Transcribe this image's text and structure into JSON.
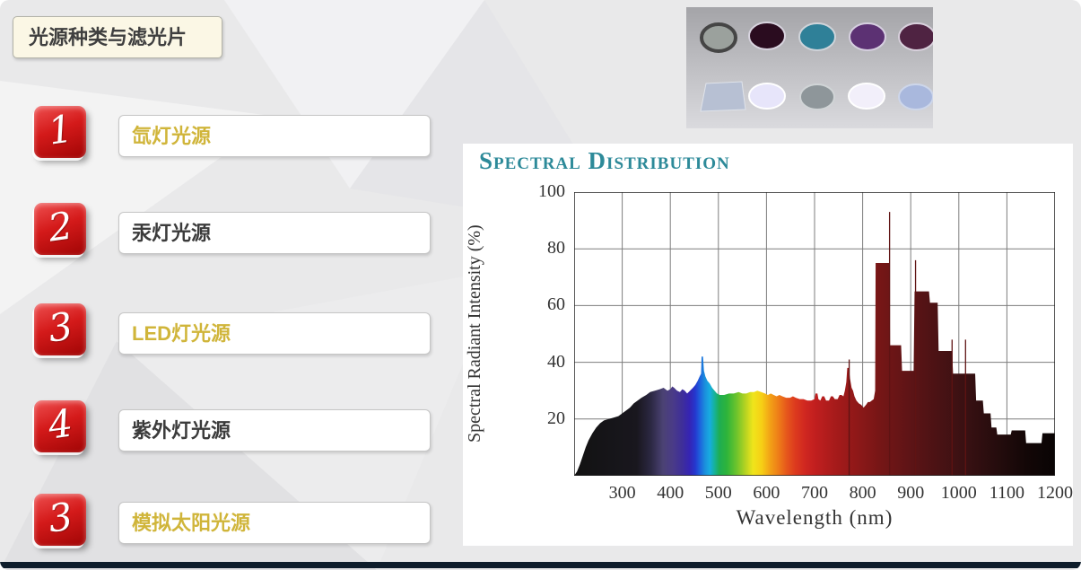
{
  "slide": {
    "title": "光源种类与滤光片",
    "items": [
      {
        "number": "1",
        "label": "氙灯光源",
        "highlight": true
      },
      {
        "number": "2",
        "label": "汞灯光源",
        "highlight": false
      },
      {
        "number": "3",
        "label": "LED灯光源",
        "highlight": true
      },
      {
        "number": "4",
        "label": "紫外灯光源",
        "highlight": false
      },
      {
        "number": "3",
        "label": "模拟太阳光源",
        "highlight": true
      }
    ],
    "colors": {
      "badge_red": "#c8110f",
      "gold_text": "#d0b53a",
      "dark_text": "#3b3b3b",
      "title_teal": "#2d8a99",
      "bottom_bar": "#0e1d2b"
    }
  },
  "filters_photo": {
    "description": "photo of optical filters",
    "top_row_colors": [
      "#9ba19d",
      "#2a0c1f",
      "#2f8098",
      "#5c3173",
      "#4f2342"
    ],
    "bottom_row_colors": [
      "#b7c0d3",
      "#e7e5fa",
      "#8e969a",
      "#f2effa",
      "#a9b8dd"
    ]
  },
  "chart": {
    "title": "Spectral Distribution",
    "ylabel": "Spectral Radiant Intensity (%)",
    "xlabel": "Wavelength (nm)"
  },
  "chart_data": {
    "type": "area",
    "title": "Spectral Distribution",
    "xlabel": "Wavelength (nm)",
    "ylabel": "Spectral Radiant Intensity (%)",
    "xlim": [
      200,
      1200
    ],
    "ylim": [
      0,
      100
    ],
    "x_ticks": [
      300,
      400,
      500,
      600,
      700,
      800,
      900,
      1000,
      1100,
      1200
    ],
    "y_ticks": [
      20,
      40,
      60,
      80,
      100
    ],
    "grid": true,
    "points": [
      [
        200,
        0
      ],
      [
        206,
        1.5
      ],
      [
        212,
        4
      ],
      [
        218,
        7
      ],
      [
        224,
        10
      ],
      [
        230,
        12.5
      ],
      [
        238,
        15
      ],
      [
        246,
        17
      ],
      [
        254,
        18.5
      ],
      [
        262,
        19.5
      ],
      [
        272,
        20
      ],
      [
        282,
        20.5
      ],
      [
        292,
        21
      ],
      [
        300,
        22
      ],
      [
        308,
        23
      ],
      [
        316,
        24
      ],
      [
        324,
        25.5
      ],
      [
        332,
        26.5
      ],
      [
        340,
        27.5
      ],
      [
        350,
        28.5
      ],
      [
        358,
        29.5
      ],
      [
        368,
        30
      ],
      [
        378,
        30.5
      ],
      [
        386,
        31
      ],
      [
        394,
        30
      ],
      [
        400,
        30.5
      ],
      [
        404,
        31.5
      ],
      [
        408,
        31
      ],
      [
        414,
        30
      ],
      [
        420,
        29.5
      ],
      [
        425,
        30.5
      ],
      [
        430,
        30
      ],
      [
        435,
        29
      ],
      [
        441,
        30
      ],
      [
        447,
        31
      ],
      [
        452,
        32
      ],
      [
        457,
        33.5
      ],
      [
        461,
        35
      ],
      [
        464,
        36
      ],
      [
        465,
        42
      ],
      [
        468,
        42
      ],
      [
        470,
        37
      ],
      [
        473,
        35
      ],
      [
        477,
        33.5
      ],
      [
        482,
        32.5
      ],
      [
        487,
        31
      ],
      [
        492,
        30
      ],
      [
        497,
        29
      ],
      [
        503,
        28.5
      ],
      [
        512,
        28.5
      ],
      [
        522,
        29
      ],
      [
        532,
        29
      ],
      [
        542,
        29.5
      ],
      [
        550,
        29
      ],
      [
        558,
        29
      ],
      [
        566,
        29.5
      ],
      [
        574,
        29.5
      ],
      [
        581,
        30
      ],
      [
        589,
        29.5
      ],
      [
        597,
        29
      ],
      [
        603,
        28.5
      ],
      [
        609,
        29
      ],
      [
        615,
        28.5
      ],
      [
        621,
        28
      ],
      [
        627,
        28.5
      ],
      [
        633,
        28
      ],
      [
        641,
        27.5
      ],
      [
        649,
        27.5
      ],
      [
        655,
        28
      ],
      [
        661,
        27.5
      ],
      [
        669,
        27
      ],
      [
        677,
        27
      ],
      [
        685,
        26.5
      ],
      [
        693,
        26.5
      ],
      [
        700,
        27
      ],
      [
        702,
        29
      ],
      [
        706,
        29
      ],
      [
        708,
        27
      ],
      [
        712,
        26.5
      ],
      [
        716,
        28
      ],
      [
        720,
        28
      ],
      [
        724,
        26.5
      ],
      [
        730,
        26.5
      ],
      [
        734,
        28
      ],
      [
        738,
        28
      ],
      [
        742,
        27
      ],
      [
        748,
        27
      ],
      [
        752,
        28.5
      ],
      [
        756,
        28.5
      ],
      [
        760,
        28
      ],
      [
        763,
        30
      ],
      [
        766,
        33
      ],
      [
        768,
        38
      ],
      [
        771,
        38
      ],
      [
        774,
        34
      ],
      [
        777,
        31
      ],
      [
        780,
        30
      ],
      [
        783,
        28
      ],
      [
        787,
        26.5
      ],
      [
        792,
        25.5
      ],
      [
        797,
        25
      ],
      [
        802,
        24
      ],
      [
        807,
        25
      ],
      [
        811,
        26
      ],
      [
        815,
        26
      ],
      [
        819,
        26.5
      ],
      [
        823,
        27
      ],
      [
        826,
        30
      ],
      [
        827,
        75
      ],
      [
        856,
        75
      ],
      [
        857,
        46
      ],
      [
        880,
        46
      ],
      [
        882,
        37
      ],
      [
        906,
        37
      ],
      [
        908,
        65
      ],
      [
        938,
        65
      ],
      [
        940,
        61
      ],
      [
        956,
        61
      ],
      [
        958,
        44
      ],
      [
        986,
        44
      ],
      [
        988,
        36
      ],
      [
        1034,
        36
      ],
      [
        1036,
        26.5
      ],
      [
        1050,
        26.5
      ],
      [
        1052,
        22
      ],
      [
        1066,
        22
      ],
      [
        1068,
        17
      ],
      [
        1078,
        17
      ],
      [
        1080,
        14.5
      ],
      [
        1108,
        14.5
      ],
      [
        1110,
        16
      ],
      [
        1138,
        16
      ],
      [
        1140,
        11.5
      ],
      [
        1172,
        11.5
      ],
      [
        1174,
        15
      ],
      [
        1200,
        15
      ]
    ],
    "thin_spikes": [
      [
        772,
        41
      ],
      [
        856,
        93
      ],
      [
        910,
        76
      ],
      [
        986,
        48
      ],
      [
        1014,
        48
      ]
    ],
    "spectrum_gradient": [
      [
        200,
        "#121212"
      ],
      [
        330,
        "#19171e"
      ],
      [
        360,
        "#2c2843"
      ],
      [
        385,
        "#4b4274"
      ],
      [
        405,
        "#4a3b87"
      ],
      [
        425,
        "#3e2e99"
      ],
      [
        440,
        "#3524b4"
      ],
      [
        452,
        "#2538cf"
      ],
      [
        462,
        "#1d64dd"
      ],
      [
        472,
        "#1b8fdc"
      ],
      [
        482,
        "#17ace2"
      ],
      [
        492,
        "#16b299"
      ],
      [
        502,
        "#1ead52"
      ],
      [
        518,
        "#2fb43a"
      ],
      [
        538,
        "#6ec42c"
      ],
      [
        556,
        "#b5d322"
      ],
      [
        572,
        "#efe51b"
      ],
      [
        590,
        "#f6cf15"
      ],
      [
        608,
        "#f2a016"
      ],
      [
        625,
        "#ee7d18"
      ],
      [
        642,
        "#e6571c"
      ],
      [
        660,
        "#dc3a1e"
      ],
      [
        680,
        "#d02720"
      ],
      [
        700,
        "#c21f1f"
      ],
      [
        740,
        "#a81b1b"
      ],
      [
        790,
        "#8d1818"
      ],
      [
        840,
        "#741616"
      ],
      [
        900,
        "#5d1416"
      ],
      [
        960,
        "#491214"
      ],
      [
        1020,
        "#371012"
      ],
      [
        1080,
        "#250c0d"
      ],
      [
        1140,
        "#130707"
      ],
      [
        1200,
        "#090404"
      ]
    ]
  }
}
